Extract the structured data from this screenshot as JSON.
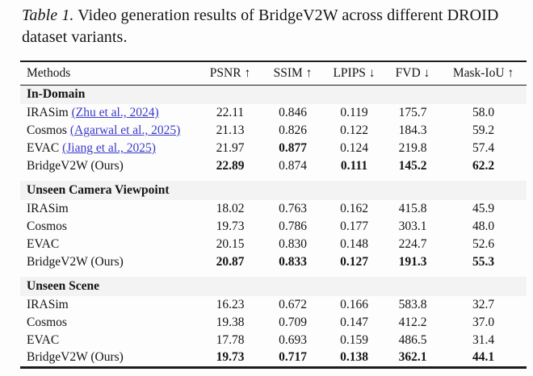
{
  "caption": {
    "label": "Table 1.",
    "text": "Video generation results of BridgeV2W across different DROID dataset variants."
  },
  "table": {
    "columns": [
      "Methods",
      "PSNR ↑",
      "SSIM ↑",
      "LPIPS ↓",
      "FVD ↓",
      "Mask-IoU ↑"
    ],
    "sections": [
      {
        "title": "In-Domain",
        "rows": [
          {
            "method": "IRASim",
            "citation": "(Zhu et al., 2024)",
            "values": [
              "22.11",
              "0.846",
              "0.119",
              "175.7",
              "58.0"
            ],
            "bold": [
              false,
              false,
              false,
              false,
              false
            ]
          },
          {
            "method": "Cosmos",
            "citation": "(Agarwal et al., 2025)",
            "values": [
              "21.13",
              "0.826",
              "0.122",
              "184.3",
              "59.2"
            ],
            "bold": [
              false,
              false,
              false,
              false,
              false
            ]
          },
          {
            "method": "EVAC",
            "citation": "(Jiang et al., 2025)",
            "values": [
              "21.97",
              "0.877",
              "0.124",
              "219.8",
              "57.4"
            ],
            "bold": [
              false,
              true,
              false,
              false,
              false
            ]
          },
          {
            "method": "BridgeV2W (Ours)",
            "citation": "",
            "values": [
              "22.89",
              "0.874",
              "0.111",
              "145.2",
              "62.2"
            ],
            "bold": [
              true,
              false,
              true,
              true,
              true
            ]
          }
        ]
      },
      {
        "title": "Unseen Camera Viewpoint",
        "rows": [
          {
            "method": "IRASim",
            "citation": "",
            "values": [
              "18.02",
              "0.763",
              "0.162",
              "415.8",
              "45.9"
            ],
            "bold": [
              false,
              false,
              false,
              false,
              false
            ]
          },
          {
            "method": "Cosmos",
            "citation": "",
            "values": [
              "19.73",
              "0.786",
              "0.177",
              "303.1",
              "48.0"
            ],
            "bold": [
              false,
              false,
              false,
              false,
              false
            ]
          },
          {
            "method": "EVAC",
            "citation": "",
            "values": [
              "20.15",
              "0.830",
              "0.148",
              "224.7",
              "52.6"
            ],
            "bold": [
              false,
              false,
              false,
              false,
              false
            ]
          },
          {
            "method": "BridgeV2W (Ours)",
            "citation": "",
            "values": [
              "20.87",
              "0.833",
              "0.127",
              "191.3",
              "55.3"
            ],
            "bold": [
              true,
              true,
              true,
              true,
              true
            ]
          }
        ]
      },
      {
        "title": "Unseen Scene",
        "rows": [
          {
            "method": "IRASim",
            "citation": "",
            "values": [
              "16.23",
              "0.672",
              "0.166",
              "583.8",
              "32.7"
            ],
            "bold": [
              false,
              false,
              false,
              false,
              false
            ]
          },
          {
            "method": "Cosmos",
            "citation": "",
            "values": [
              "19.38",
              "0.709",
              "0.147",
              "412.2",
              "37.0"
            ],
            "bold": [
              false,
              false,
              false,
              false,
              false
            ]
          },
          {
            "method": "EVAC",
            "citation": "",
            "values": [
              "17.78",
              "0.693",
              "0.159",
              "486.5",
              "31.4"
            ],
            "bold": [
              false,
              false,
              false,
              false,
              false
            ]
          },
          {
            "method": "BridgeV2W (Ours)",
            "citation": "",
            "values": [
              "19.73",
              "0.717",
              "0.138",
              "362.1",
              "44.1"
            ],
            "bold": [
              true,
              true,
              true,
              true,
              true
            ]
          }
        ]
      }
    ]
  },
  "colors": {
    "link": "#3a3acc",
    "band": "#f3f3f3",
    "rule": "#1c1c1c"
  }
}
